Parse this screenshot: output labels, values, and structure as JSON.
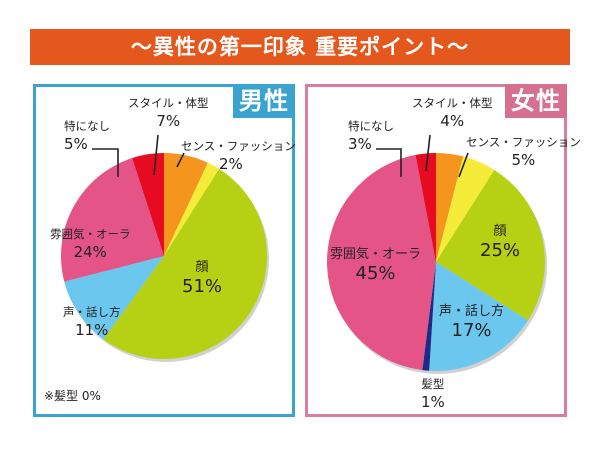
{
  "title": "～異性の第一印象 重要ポイント～",
  "chart_data": [
    {
      "type": "pie",
      "title": "男性",
      "unit": "%",
      "slices": [
        {
          "label": "スタイル・体型",
          "value": 7,
          "value_label": "7%",
          "color": "#f4951d"
        },
        {
          "label": "センス・ファッション",
          "value": 2,
          "value_label": "2%",
          "color": "#f5ec3a"
        },
        {
          "label": "顔",
          "value": 51,
          "value_label": "51%",
          "color": "#b6d013"
        },
        {
          "label": "声・話し方",
          "value": 11,
          "value_label": "11%",
          "color": "#6cc7ee"
        },
        {
          "label": "髪型",
          "value": 0,
          "value_label": "0%",
          "color": "#1d2a86"
        },
        {
          "label": "雰囲気・オーラ",
          "value": 24,
          "value_label": "24%",
          "color": "#e55486"
        },
        {
          "label": "特になし",
          "value": 5,
          "value_label": "5%",
          "color": "#e60b21"
        }
      ],
      "note": "※髪型 0%",
      "accent": "#3aa3cf"
    },
    {
      "type": "pie",
      "title": "女性",
      "unit": "%",
      "slices": [
        {
          "label": "スタイル・体型",
          "value": 4,
          "value_label": "4%",
          "color": "#f4951d"
        },
        {
          "label": "センス・ファッション",
          "value": 5,
          "value_label": "5%",
          "color": "#f5ec3a"
        },
        {
          "label": "顔",
          "value": 25,
          "value_label": "25%",
          "color": "#b6d013"
        },
        {
          "label": "声・話し方",
          "value": 17,
          "value_label": "17%",
          "color": "#6cc7ee"
        },
        {
          "label": "髪型",
          "value": 1,
          "value_label": "1%",
          "color": "#1d2a86"
        },
        {
          "label": "雰囲気・オーラ",
          "value": 45,
          "value_label": "45%",
          "color": "#e55486"
        },
        {
          "label": "特になし",
          "value": 3,
          "value_label": "3%",
          "color": "#e60b21"
        }
      ],
      "accent": "#d6708f"
    }
  ]
}
